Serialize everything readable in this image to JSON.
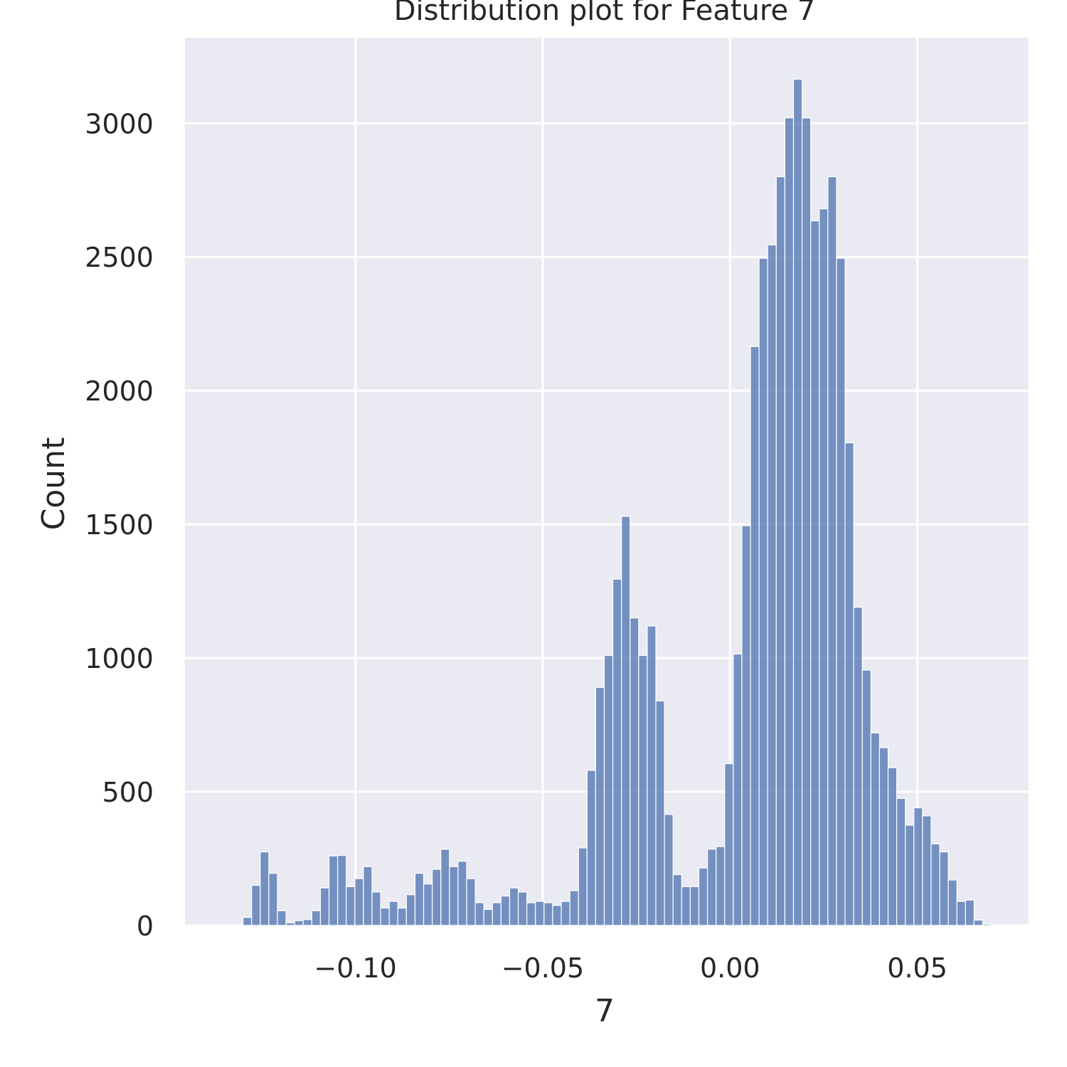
{
  "chart_data": {
    "type": "bar",
    "title": "Distribution plot for Feature 7",
    "xlabel": "7",
    "ylabel": "Count",
    "xlim": [
      -0.1455,
      0.0797
    ],
    "ylim": [
      0,
      3320
    ],
    "xticks": [
      -0.1,
      -0.05,
      0.0,
      0.05
    ],
    "xtick_labels": [
      "−0.10",
      "−0.05",
      "0.00",
      "0.05"
    ],
    "yticks": [
      0,
      500,
      1000,
      1500,
      2000,
      2500,
      3000
    ],
    "ytick_labels": [
      "0",
      "500",
      "1000",
      "1500",
      "2000",
      "2500",
      "3000"
    ],
    "grid": true,
    "bin_start": -0.13,
    "bin_width": 0.002296,
    "values": [
      30,
      150,
      275,
      195,
      55,
      10,
      18,
      22,
      55,
      140,
      260,
      262,
      145,
      175,
      220,
      125,
      65,
      90,
      65,
      115,
      195,
      155,
      210,
      285,
      220,
      240,
      175,
      85,
      60,
      85,
      110,
      140,
      125,
      85,
      90,
      85,
      75,
      90,
      130,
      290,
      580,
      890,
      1010,
      1295,
      1530,
      1150,
      1010,
      1120,
      840,
      415,
      190,
      145,
      145,
      215,
      285,
      295,
      605,
      1015,
      1495,
      2165,
      2495,
      2545,
      2800,
      3020,
      3165,
      3020,
      2635,
      2680,
      2800,
      2495,
      1805,
      1190,
      955,
      720,
      665,
      590,
      475,
      375,
      440,
      410,
      305,
      275,
      170,
      90,
      95,
      20,
      5
    ],
    "colors": {
      "bar_fill": "#4c72b0",
      "bar_stroke": "#ffffff",
      "plot_background": "#eaeaf2",
      "grid": "#ffffff",
      "text": "#262626"
    }
  }
}
